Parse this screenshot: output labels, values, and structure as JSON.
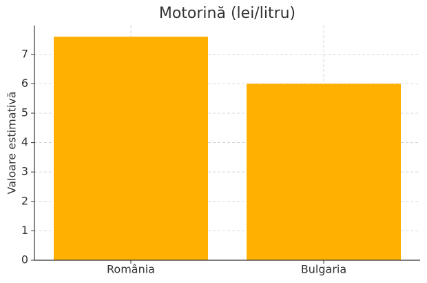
{
  "chart_data": {
    "type": "bar",
    "title": "Motorină (lei/litru)",
    "y_label": "Valoare estimativă",
    "categories": [
      "România",
      "Bulgaria"
    ],
    "values": [
      7.6,
      6.0
    ],
    "color": "#ffb000",
    "ylim": [
      0,
      7.98
    ],
    "yticks": [
      0,
      1,
      2,
      3,
      4,
      5,
      6,
      7
    ],
    "grid": true
  }
}
